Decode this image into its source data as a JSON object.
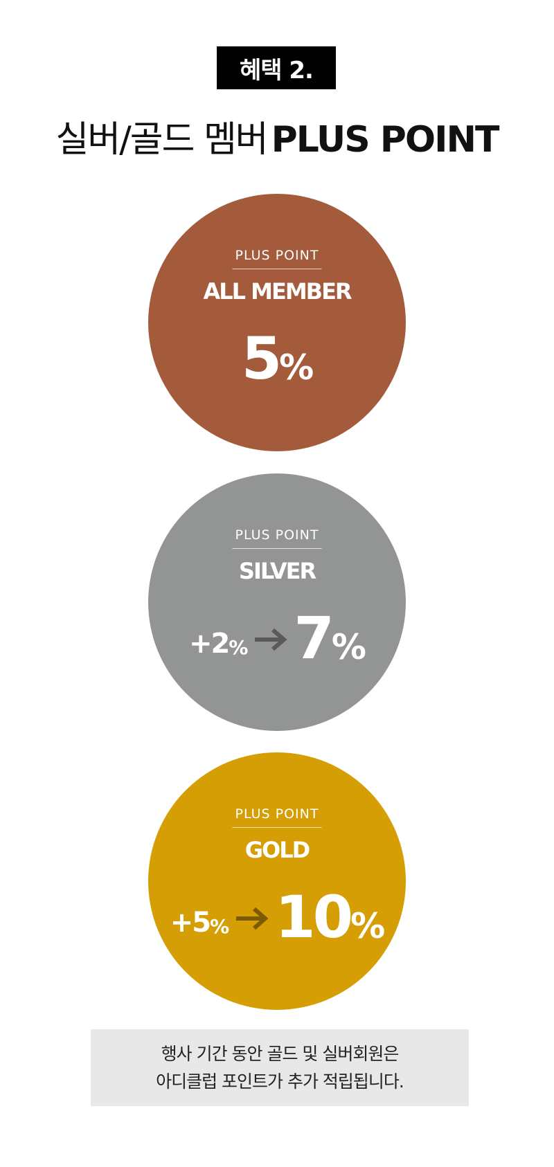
{
  "badge": {
    "text": "혜택 2."
  },
  "headline": {
    "korean": "실버/골드 멤버",
    "english": "PLUS POINT"
  },
  "circles": [
    {
      "label": "PLUS POINT",
      "tier": "ALL MEMBER",
      "value": "5",
      "percent": "%",
      "color": "#a35b3c"
    },
    {
      "label": "PLUS POINT",
      "tier": "SILVER",
      "bonus": "+2",
      "bonus_percent": "%",
      "value": "7",
      "percent": "%",
      "color": "#939494",
      "arrow_color": "#5a5a5a"
    },
    {
      "label": "PLUS POINT",
      "tier": "GOLD",
      "bonus": "+5",
      "bonus_percent": "%",
      "value": "10",
      "percent": "%",
      "color": "#d49e04",
      "arrow_color": "#7a5b00"
    }
  ],
  "notice": {
    "line1": "행사 기간 동안 골드 및 실버회원은",
    "line2": "아디클럽 포인트가 추가 적립됩니다."
  }
}
